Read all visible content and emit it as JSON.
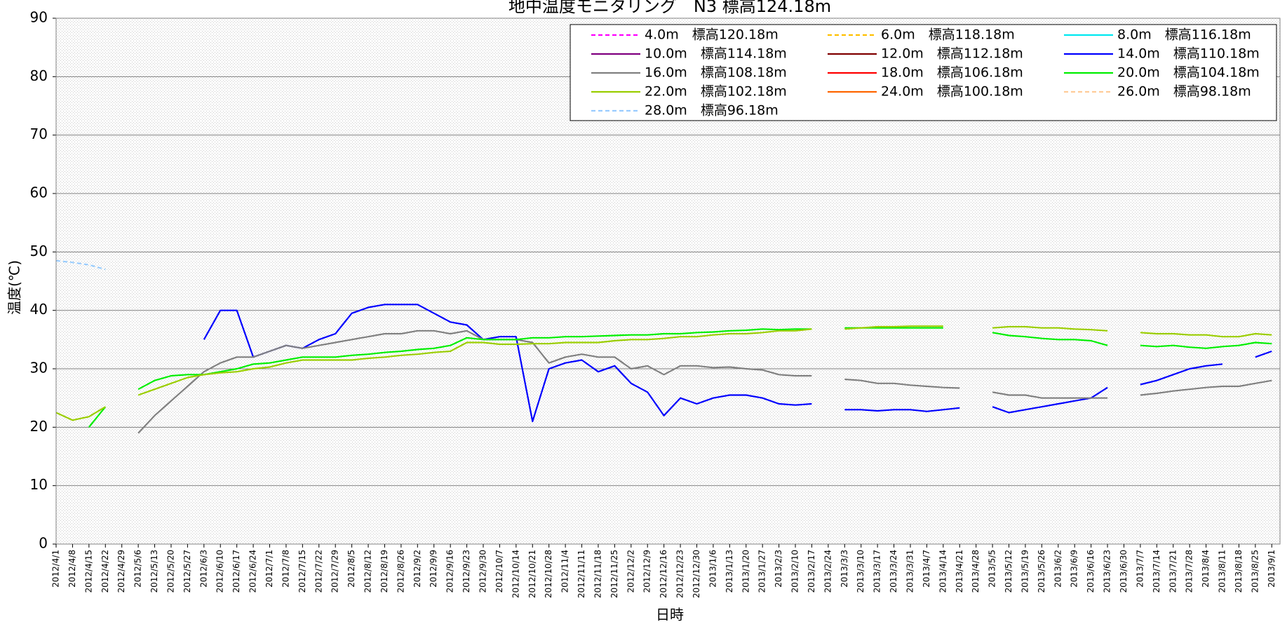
{
  "chart_data": {
    "type": "line",
    "title": "地中温度モニタリング　N3 標高124.18m",
    "y_label": "温度(℃)",
    "x_label": "日時",
    "ylim": [
      0,
      90
    ],
    "yticks": [
      0,
      10,
      20,
      30,
      40,
      50,
      60,
      70,
      80,
      90
    ],
    "grid": true,
    "legend": "top-right",
    "categories": [
      "2012/4/1",
      "2012/4/8",
      "2012/4/15",
      "2012/4/22",
      "2012/4/29",
      "2012/5/6",
      "2012/5/13",
      "2012/5/20",
      "2012/5/27",
      "2012/6/3",
      "2012/6/10",
      "2012/6/17",
      "2012/6/24",
      "2012/7/1",
      "2012/7/8",
      "2012/7/15",
      "2012/7/22",
      "2012/7/29",
      "2012/8/5",
      "2012/8/12",
      "2012/8/19",
      "2012/8/26",
      "2012/9/2",
      "2012/9/9",
      "2012/9/16",
      "2012/9/23",
      "2012/9/30",
      "2012/10/7",
      "2012/10/14",
      "2012/10/21",
      "2012/10/28",
      "2012/11/4",
      "2012/11/11",
      "2012/11/18",
      "2012/11/25",
      "2012/12/2",
      "2012/12/9",
      "2012/12/16",
      "2012/12/23",
      "2012/12/30",
      "2013/1/6",
      "2013/1/13",
      "2013/1/20",
      "2013/1/27",
      "2013/2/3",
      "2013/2/10",
      "2013/2/17",
      "2013/2/24",
      "2013/3/3",
      "2013/3/10",
      "2013/3/17",
      "2013/3/24",
      "2013/3/31",
      "2013/4/7",
      "2013/4/14",
      "2013/4/21",
      "2013/4/28",
      "2013/5/5",
      "2013/5/12",
      "2013/5/19",
      "2013/5/26",
      "2013/6/2",
      "2013/6/9",
      "2013/6/16",
      "2013/6/23",
      "2013/6/30",
      "2013/7/7",
      "2013/7/14",
      "2013/7/21",
      "2013/7/28",
      "2013/8/4",
      "2013/8/11",
      "2013/8/18",
      "2013/8/25",
      "2013/9/1"
    ],
    "series": [
      {
        "name": "4.0m　標高120.18m",
        "color": "#ff00ff",
        "dashed": true,
        "values": [
          null,
          null,
          null,
          null,
          null,
          null,
          null,
          null,
          null,
          null,
          null,
          null,
          null,
          null,
          null,
          null,
          null,
          null,
          null,
          null,
          null,
          null,
          null,
          null,
          null,
          null,
          null,
          null,
          null,
          null,
          null,
          null,
          null,
          null,
          null,
          null,
          null,
          null,
          null,
          null,
          null,
          null,
          null,
          null,
          null,
          null,
          null,
          null,
          null,
          null,
          null,
          null,
          null,
          null,
          null,
          null,
          null,
          null,
          null,
          null,
          null,
          null,
          null,
          null,
          null,
          null,
          null,
          null,
          null,
          null,
          null,
          null,
          null,
          null,
          null
        ]
      },
      {
        "name": "6.0m　標高118.18m",
        "color": "#ffc000",
        "dashed": true,
        "values": [
          null,
          null,
          null,
          null,
          null,
          null,
          null,
          null,
          null,
          null,
          null,
          null,
          null,
          null,
          null,
          null,
          null,
          null,
          null,
          null,
          null,
          null,
          null,
          null,
          null,
          null,
          null,
          null,
          null,
          null,
          null,
          null,
          null,
          null,
          null,
          null,
          null,
          null,
          null,
          null,
          null,
          null,
          null,
          null,
          null,
          null,
          null,
          null,
          null,
          null,
          null,
          null,
          null,
          null,
          null,
          null,
          null,
          null,
          null,
          null,
          null,
          null,
          null,
          null,
          null,
          null,
          null,
          null,
          null,
          null,
          null,
          null,
          null,
          null,
          null
        ]
      },
      {
        "name": "8.0m　標高116.18m",
        "color": "#00e8f0",
        "dashed": false,
        "values": [
          null,
          null,
          null,
          null,
          null,
          null,
          null,
          null,
          null,
          null,
          null,
          null,
          null,
          null,
          null,
          null,
          null,
          null,
          null,
          null,
          null,
          null,
          null,
          null,
          null,
          null,
          null,
          null,
          null,
          null,
          null,
          null,
          null,
          null,
          null,
          null,
          null,
          null,
          null,
          null,
          null,
          null,
          null,
          null,
          null,
          null,
          null,
          null,
          null,
          null,
          null,
          null,
          null,
          null,
          null,
          null,
          null,
          null,
          null,
          null,
          null,
          null,
          null,
          null,
          null,
          null,
          null,
          null,
          null,
          null,
          null,
          null,
          null,
          null,
          null
        ]
      },
      {
        "name": "10.0m　標高114.18m",
        "color": "#800080",
        "dashed": false,
        "values": [
          null,
          null,
          null,
          null,
          null,
          null,
          null,
          null,
          null,
          null,
          null,
          null,
          null,
          null,
          null,
          null,
          null,
          null,
          null,
          null,
          null,
          null,
          null,
          null,
          null,
          null,
          null,
          null,
          null,
          null,
          null,
          null,
          null,
          null,
          null,
          null,
          null,
          null,
          null,
          null,
          null,
          null,
          null,
          null,
          null,
          null,
          null,
          null,
          null,
          null,
          null,
          null,
          null,
          null,
          null,
          null,
          null,
          null,
          null,
          null,
          null,
          null,
          null,
          null,
          null,
          null,
          null,
          null,
          null,
          null,
          null,
          null,
          null,
          null,
          null
        ]
      },
      {
        "name": "12.0m　標高112.18m",
        "color": "#800000",
        "dashed": false,
        "values": [
          null,
          null,
          null,
          null,
          null,
          null,
          null,
          null,
          null,
          null,
          null,
          null,
          null,
          null,
          null,
          null,
          null,
          null,
          null,
          null,
          null,
          null,
          null,
          null,
          null,
          null,
          null,
          null,
          null,
          null,
          null,
          null,
          null,
          null,
          null,
          null,
          null,
          null,
          null,
          null,
          null,
          null,
          null,
          null,
          null,
          null,
          null,
          null,
          null,
          null,
          null,
          null,
          null,
          null,
          null,
          null,
          null,
          null,
          null,
          null,
          null,
          null,
          null,
          null,
          null,
          null,
          null,
          null,
          null,
          null,
          null,
          null,
          null,
          null,
          null
        ]
      },
      {
        "name": "14.0m　標高110.18m",
        "color": "#0000ff",
        "dashed": false,
        "values": [
          null,
          null,
          null,
          null,
          null,
          null,
          null,
          null,
          null,
          35,
          40,
          40,
          32,
          33,
          34,
          33.5,
          35,
          36,
          39.5,
          40.5,
          41,
          41,
          41,
          39.5,
          38,
          37.5,
          35,
          35.5,
          35.5,
          21,
          30,
          31,
          31.5,
          29.5,
          30.5,
          27.5,
          26,
          22,
          25,
          24,
          25,
          25.5,
          25.5,
          25,
          24,
          23.8,
          24,
          null,
          23,
          23,
          22.8,
          23,
          23,
          22.7,
          23,
          23.3,
          null,
          23.5,
          22.5,
          23,
          23.5,
          24,
          24.5,
          25,
          26.8,
          null,
          27.3,
          28,
          29,
          30,
          30.5,
          30.8,
          null,
          32,
          33
        ]
      },
      {
        "name": "16.0m　標高108.18m",
        "color": "#808080",
        "dashed": false,
        "values": [
          null,
          null,
          null,
          null,
          null,
          19,
          22,
          24.5,
          27,
          29.5,
          31,
          32,
          32,
          33,
          34,
          33.5,
          34,
          34.5,
          35,
          35.5,
          36,
          36,
          36.5,
          36.5,
          36,
          36.5,
          35,
          35,
          35,
          34.5,
          31,
          32,
          32.5,
          32,
          32,
          30,
          30.5,
          29,
          30.5,
          30.5,
          30.2,
          30.3,
          30,
          29.8,
          29,
          28.8,
          28.8,
          null,
          28.2,
          28,
          27.5,
          27.5,
          27.2,
          27,
          26.8,
          26.7,
          null,
          26,
          25.5,
          25.5,
          25,
          25,
          25,
          25,
          25,
          null,
          25.5,
          25.8,
          26.2,
          26.5,
          26.8,
          27,
          27,
          27.5,
          28
        ]
      },
      {
        "name": "18.0m　標高106.18m",
        "color": "#ff0000",
        "dashed": false,
        "values": [
          null,
          null,
          null,
          null,
          null,
          null,
          null,
          null,
          null,
          null,
          null,
          null,
          null,
          null,
          null,
          null,
          null,
          null,
          null,
          null,
          null,
          null,
          null,
          null,
          null,
          null,
          null,
          null,
          null,
          null,
          null,
          null,
          null,
          null,
          null,
          null,
          null,
          null,
          null,
          null,
          null,
          null,
          null,
          null,
          null,
          null,
          null,
          null,
          null,
          null,
          null,
          null,
          null,
          null,
          null,
          null,
          null,
          null,
          null,
          null,
          null,
          null,
          null,
          null,
          null,
          null,
          null,
          null,
          null,
          null,
          null,
          null,
          null,
          null,
          null
        ]
      },
      {
        "name": "20.0m　標高104.18m",
        "color": "#00ee00",
        "dashed": false,
        "values": [
          null,
          null,
          20,
          23.5,
          null,
          26.5,
          28,
          28.8,
          29,
          29,
          29.5,
          30,
          30.8,
          31,
          31.5,
          32,
          32,
          32,
          32.3,
          32.5,
          32.8,
          33,
          33.3,
          33.5,
          34,
          35.3,
          35,
          35,
          35,
          35.3,
          35.3,
          35.5,
          35.5,
          35.6,
          35.7,
          35.8,
          35.8,
          36,
          36,
          36.2,
          36.3,
          36.5,
          36.6,
          36.8,
          36.7,
          36.8,
          36.8,
          null,
          37,
          37,
          37,
          37,
          37,
          37,
          37,
          null,
          null,
          36.2,
          35.7,
          35.5,
          35.2,
          35,
          35,
          34.8,
          34,
          null,
          34,
          33.8,
          34,
          33.7,
          33.5,
          33.8,
          34,
          34.5,
          34.3
        ]
      },
      {
        "name": "22.0m　標高102.18m",
        "color": "#9acd00",
        "dashed": false,
        "values": [
          22.5,
          21.2,
          21.8,
          23.5,
          null,
          25.5,
          26.5,
          27.5,
          28.5,
          29,
          29.3,
          29.5,
          30,
          30.3,
          31,
          31.5,
          31.5,
          31.5,
          31.5,
          31.8,
          32,
          32.3,
          32.5,
          32.8,
          33,
          34.5,
          34.5,
          34.2,
          34.2,
          34.3,
          34.3,
          34.5,
          34.5,
          34.5,
          34.8,
          35,
          35,
          35.2,
          35.5,
          35.5,
          35.8,
          36,
          36,
          36.2,
          36.5,
          36.5,
          36.8,
          null,
          36.8,
          37,
          37.2,
          37.2,
          37.3,
          37.3,
          37.3,
          null,
          null,
          37,
          37.2,
          37.2,
          37,
          37,
          36.8,
          36.7,
          36.5,
          null,
          36.2,
          36,
          36,
          35.8,
          35.8,
          35.5,
          35.5,
          36,
          35.8
        ]
      },
      {
        "name": "24.0m　標高100.18m",
        "color": "#ff6600",
        "dashed": false,
        "values": [
          null,
          null,
          null,
          null,
          null,
          null,
          null,
          null,
          null,
          null,
          null,
          null,
          null,
          null,
          null,
          null,
          null,
          null,
          null,
          null,
          null,
          null,
          null,
          null,
          null,
          null,
          null,
          null,
          null,
          null,
          null,
          null,
          null,
          null,
          null,
          null,
          null,
          null,
          null,
          null,
          null,
          null,
          null,
          null,
          null,
          null,
          null,
          null,
          null,
          null,
          null,
          null,
          null,
          null,
          null,
          null,
          null,
          null,
          null,
          null,
          null,
          null,
          null,
          null,
          null,
          null,
          null,
          null,
          null,
          null,
          null,
          null,
          null,
          null,
          null
        ]
      },
      {
        "name": "26.0m　標高98.18m",
        "color": "#ffcc99",
        "dashed": true,
        "values": [
          null,
          null,
          null,
          null,
          null,
          null,
          null,
          null,
          null,
          null,
          null,
          null,
          null,
          null,
          null,
          null,
          null,
          null,
          null,
          null,
          null,
          null,
          null,
          null,
          null,
          null,
          null,
          null,
          null,
          null,
          null,
          null,
          null,
          null,
          null,
          null,
          null,
          null,
          null,
          null,
          null,
          null,
          null,
          null,
          null,
          null,
          null,
          null,
          null,
          null,
          null,
          null,
          null,
          null,
          null,
          null,
          null,
          null,
          null,
          null,
          null,
          null,
          null,
          null,
          null,
          null,
          null,
          null,
          null,
          null,
          null,
          null,
          null,
          null,
          null
        ]
      },
      {
        "name": "28.0m　標高96.18m",
        "color": "#99ccff",
        "dashed": true,
        "values": [
          48.5,
          48.2,
          47.8,
          47,
          null,
          null,
          null,
          null,
          null,
          null,
          null,
          null,
          null,
          null,
          null,
          null,
          null,
          null,
          null,
          null,
          null,
          null,
          null,
          null,
          null,
          null,
          null,
          null,
          null,
          null,
          null,
          null,
          null,
          null,
          null,
          null,
          null,
          null,
          null,
          null,
          null,
          null,
          null,
          null,
          null,
          null,
          null,
          null,
          null,
          null,
          null,
          null,
          null,
          null,
          null,
          null,
          null,
          null,
          null,
          null,
          null,
          null,
          null,
          null,
          null,
          null,
          null,
          null,
          null,
          null,
          null,
          null,
          null,
          null,
          null
        ]
      }
    ]
  }
}
